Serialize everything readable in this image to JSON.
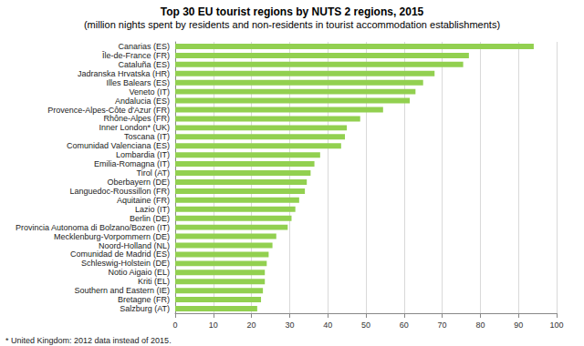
{
  "chart_data": {
    "type": "bar",
    "orientation": "horizontal",
    "title": "Top 30 EU tourist regions by NUTS 2 regions, 2015",
    "subtitle": "(million nights spent by residents and non-residents in tourist accommodation establishments)",
    "annotations": [
      "* United Kingdom: 2012 data instead of 2015."
    ],
    "categories": [
      "Canarias (ES)",
      "Île-de-France (FR)",
      "Cataluña (ES)",
      "Jadranska Hrvatska (HR)",
      "Illes Balears (ES)",
      "Veneto (IT)",
      "Andalucia (ES)",
      "Provence-Alpes-Côte d'Azur (FR)",
      "Rhône-Alpes (FR)",
      "Inner London* (UK)",
      "Toscana (IT)",
      "Comunidad Valenciana (ES)",
      "Lombardia (IT)",
      "Emilia-Romagna (IT)",
      "Tirol (AT)",
      "Oberbayern (DE)",
      "Languedoc-Roussillon (FR)",
      "Aquitaine (FR)",
      "Lazio (IT)",
      "Berlin (DE)",
      "Provincia Autonoma di Bolzano/Bozen (IT)",
      "Mecklenburg-Vorpommern (DE)",
      "Noord-Holland (NL)",
      "Comunidad de Madrid (ES)",
      "Schleswig-Holstein (DE)",
      "Notio Aigaio (EL)",
      "Kriti (EL)",
      "Southern and Eastern (IE)",
      "Bretagne (FR)",
      "Salzburg (AT)"
    ],
    "values": [
      94,
      77,
      75.5,
      68,
      65,
      63,
      61.5,
      54.5,
      48.5,
      45,
      44.5,
      43.5,
      38,
      36.5,
      35.5,
      34.5,
      34,
      32.5,
      31.5,
      30.5,
      29.5,
      26.5,
      25.5,
      24.5,
      24,
      23.5,
      23.5,
      23,
      22.5,
      21.5
    ],
    "color": "#92d050",
    "xlim": [
      0,
      100
    ],
    "xticks": [
      0,
      10,
      20,
      30,
      40,
      50,
      60,
      70,
      80,
      90,
      100
    ],
    "grid": true
  }
}
